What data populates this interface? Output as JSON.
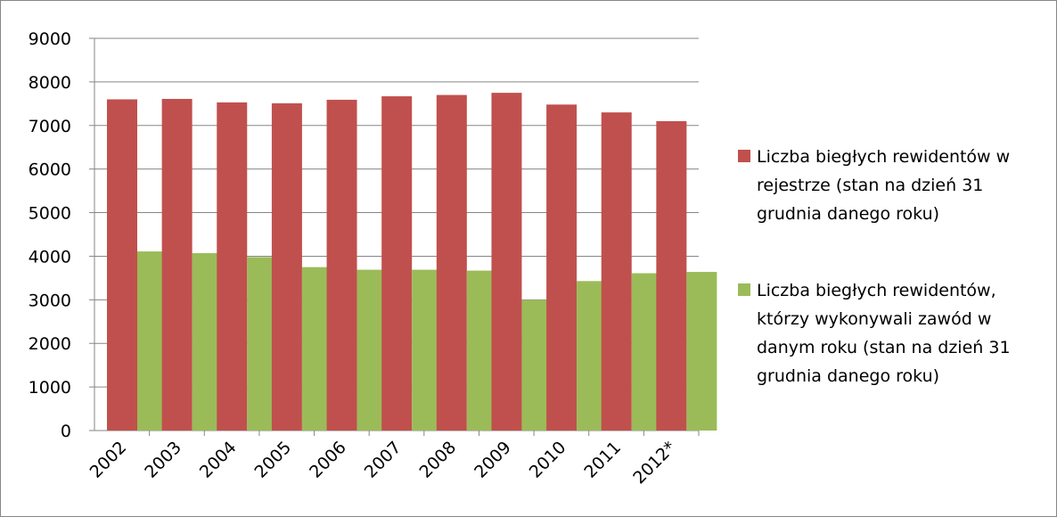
{
  "chart_data": {
    "type": "bar",
    "categories": [
      "2002",
      "2003",
      "2004",
      "2005",
      "2006",
      "2007",
      "2008",
      "2009",
      "2010",
      "2011",
      "2012*"
    ],
    "series": [
      {
        "name": "Liczba biegłych rewidentów w rejestrze (stan na dzień 31 grudnia danego roku)",
        "color": "#c0504d",
        "values": [
          7600,
          7610,
          7530,
          7510,
          7590,
          7670,
          7700,
          7750,
          7480,
          7300,
          7100
        ]
      },
      {
        "name": "Liczba biegłych rewidentów, którzy wykonywali zawód w danym roku (stan na dzień 31 grudnia danego roku)",
        "color": "#9bbb59",
        "values": [
          4110,
          4070,
          3980,
          3750,
          3690,
          3690,
          3670,
          3000,
          3430,
          3610,
          3640
        ]
      }
    ],
    "yticks": [
      "0",
      "1000",
      "2000",
      "3000",
      "4000",
      "5000",
      "6000",
      "7000",
      "8000",
      "9000"
    ],
    "ylim": [
      0,
      9000
    ],
    "grid": true,
    "legend_position": "right"
  }
}
